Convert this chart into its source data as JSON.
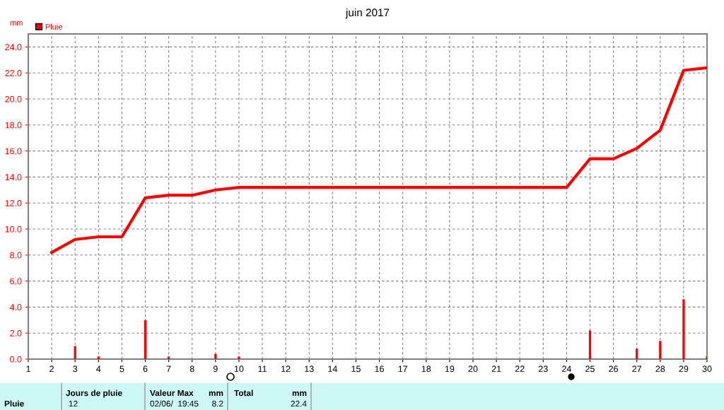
{
  "chart_data": {
    "type": "bar",
    "title": "juin 2017",
    "ylabel": "mm",
    "series": [
      {
        "name": "Pluie",
        "color": "#ff0000",
        "x": [
          1,
          2,
          3,
          4,
          5,
          6,
          7,
          8,
          9,
          10,
          11,
          12,
          13,
          14,
          15,
          16,
          17,
          18,
          19,
          20,
          21,
          22,
          23,
          24,
          25,
          26,
          27,
          28,
          29,
          30
        ],
        "values": [
          0,
          null,
          1.0,
          0.2,
          0,
          3.0,
          0.2,
          0,
          0.4,
          0.2,
          0,
          0,
          0,
          0,
          0,
          0,
          0,
          0,
          0,
          0,
          0,
          0,
          0,
          0,
          2.2,
          0,
          0.8,
          1.4,
          4.6,
          0.2
        ]
      },
      {
        "type": "line",
        "color": "#ff0000",
        "x": [
          2,
          3,
          4,
          5,
          6,
          7,
          8,
          9,
          10,
          11,
          12,
          13,
          14,
          15,
          16,
          17,
          18,
          19,
          20,
          21,
          22,
          23,
          24,
          25,
          26,
          27,
          28,
          29,
          30
        ],
        "values": [
          8.2,
          9.2,
          9.4,
          9.4,
          12.4,
          12.6,
          12.6,
          13.0,
          13.2,
          13.2,
          13.2,
          13.2,
          13.2,
          13.2,
          13.2,
          13.2,
          13.2,
          13.2,
          13.2,
          13.2,
          13.2,
          13.2,
          13.2,
          15.4,
          15.4,
          16.2,
          17.6,
          22.2,
          22.4
        ]
      }
    ],
    "xlim": [
      1,
      30
    ],
    "xticks": [
      1,
      2,
      3,
      4,
      5,
      6,
      7,
      8,
      9,
      10,
      11,
      12,
      13,
      14,
      15,
      16,
      17,
      18,
      19,
      20,
      21,
      22,
      23,
      24,
      25,
      26,
      27,
      28,
      29,
      30
    ],
    "ylim": [
      0,
      25
    ],
    "yticks": [
      {
        "value": 0,
        "label": "0.0"
      },
      {
        "value": 2,
        "label": "2.0"
      },
      {
        "value": 4,
        "label": "4.0"
      },
      {
        "value": 6,
        "label": "6.0"
      },
      {
        "value": 8,
        "label": "8.0"
      },
      {
        "value": 10,
        "label": "10.0"
      },
      {
        "value": 12,
        "label": "12.0"
      },
      {
        "value": 14,
        "label": "14.0"
      },
      {
        "value": 16,
        "label": "16.0"
      },
      {
        "value": 18,
        "label": "18.0"
      },
      {
        "value": 20,
        "label": "20.0"
      },
      {
        "value": 22,
        "label": "22.0"
      },
      {
        "value": 24,
        "label": "24.0"
      }
    ],
    "grid": true,
    "legend": "top left",
    "annotations": [
      "Pluie",
      "Jours de pluie",
      "12",
      "Valeur Max",
      "mm",
      "02/06/  19:45",
      "8.2",
      "Total",
      "mm",
      "22.4"
    ]
  }
}
